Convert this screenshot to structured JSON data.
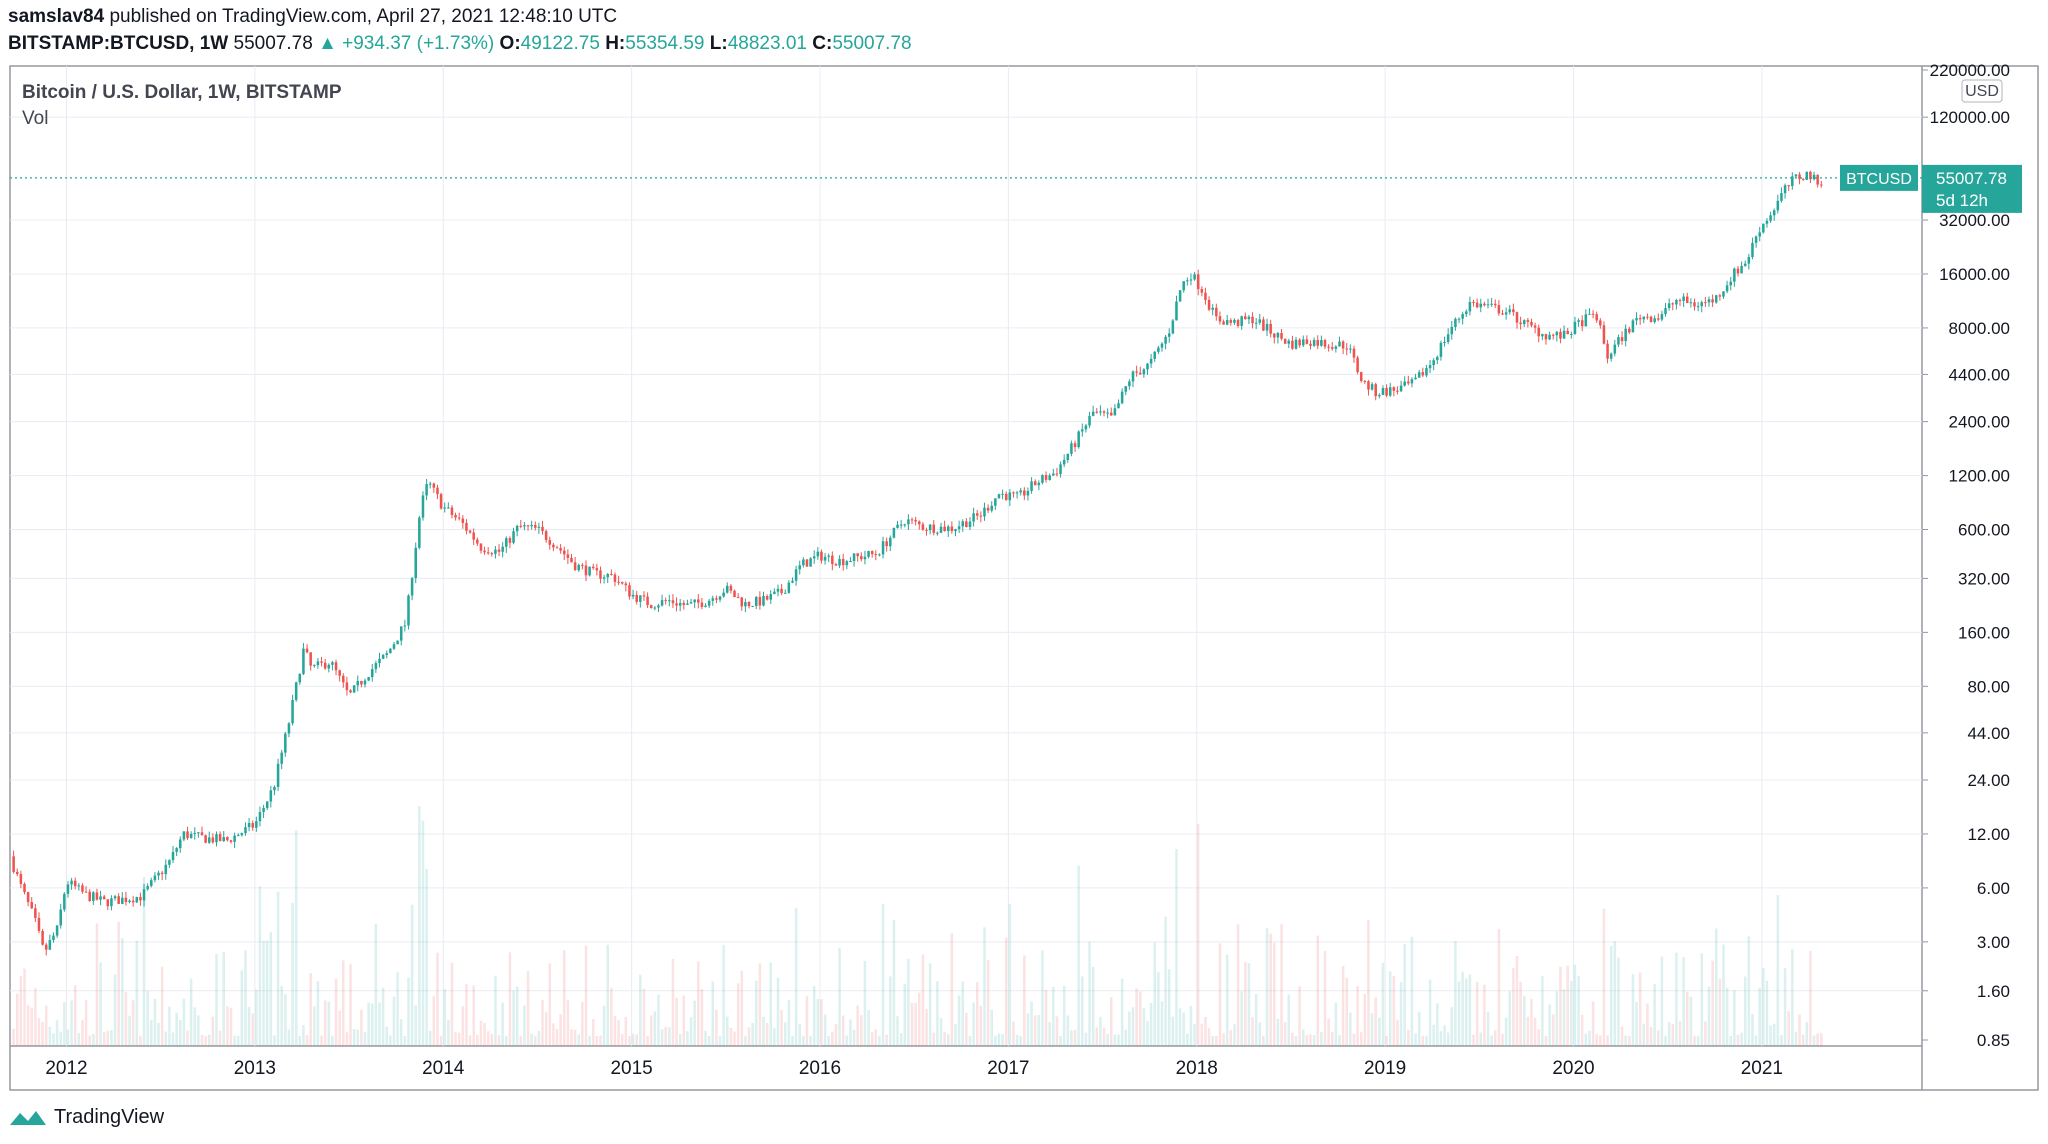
{
  "header": {
    "publisher": "samslav84",
    "published_text": "published on TradingView.com, April 27, 2021 12:48:10 UTC",
    "symbol": "BITSTAMP:BTCUSD, 1W",
    "last": "55007.78",
    "change": "▲ +934.37 (+1.73%)",
    "open_label": "O:",
    "open": "49122.75",
    "high_label": "H:",
    "high": "55354.59",
    "low_label": "L:",
    "low": "48823.01",
    "close_label": "C:",
    "close": "55007.78"
  },
  "legend": {
    "title": "Bitcoin / U.S. Dollar, 1W, BITSTAMP",
    "vol": "Vol"
  },
  "price_tag": {
    "symbol": "BTCUSD",
    "price": "55007.78",
    "countdown": "5d 12h"
  },
  "currency": "USD",
  "footer": {
    "brand": "TradingView"
  },
  "colors": {
    "up": "#26a69a",
    "down": "#ef5350",
    "grid": "#e8ecf2",
    "tag": "#26a69a"
  },
  "chart_data": {
    "type": "candlestick",
    "scale": "log",
    "ylim": [
      0.85,
      220000
    ],
    "xlim": [
      2011.7,
      2021.85
    ],
    "y_ticks": [
      "220000.00",
      "120000.00",
      "32000.00",
      "16000.00",
      "8000.00",
      "4400.00",
      "2400.00",
      "1200.00",
      "600.00",
      "320.00",
      "160.00",
      "80.00",
      "44.00",
      "24.00",
      "12.00",
      "6.00",
      "3.00",
      "1.60",
      "0.85"
    ],
    "x_ticks": [
      "2012",
      "2013",
      "2014",
      "2015",
      "2016",
      "2017",
      "2018",
      "2019",
      "2020",
      "2021"
    ],
    "approx_close_path": [
      [
        2011.7,
        9
      ],
      [
        2011.76,
        6
      ],
      [
        2011.83,
        4
      ],
      [
        2011.88,
        2.6
      ],
      [
        2011.95,
        3.5
      ],
      [
        2012.0,
        6.5
      ],
      [
        2012.1,
        5.5
      ],
      [
        2012.2,
        5.0
      ],
      [
        2012.4,
        5.4
      ],
      [
        2012.55,
        8.5
      ],
      [
        2012.62,
        12
      ],
      [
        2012.7,
        11.5
      ],
      [
        2012.85,
        11
      ],
      [
        2013.0,
        13.5
      ],
      [
        2013.1,
        22
      ],
      [
        2013.18,
        50
      ],
      [
        2013.26,
        130
      ],
      [
        2013.3,
        100
      ],
      [
        2013.4,
        110
      ],
      [
        2013.5,
        70
      ],
      [
        2013.6,
        95
      ],
      [
        2013.7,
        120
      ],
      [
        2013.8,
        180
      ],
      [
        2013.88,
        800
      ],
      [
        2013.92,
        1100
      ],
      [
        2014.0,
        800
      ],
      [
        2014.1,
        650
      ],
      [
        2014.2,
        480
      ],
      [
        2014.3,
        450
      ],
      [
        2014.4,
        620
      ],
      [
        2014.5,
        600
      ],
      [
        2014.6,
        490
      ],
      [
        2014.7,
        380
      ],
      [
        2014.8,
        340
      ],
      [
        2014.9,
        330
      ],
      [
        2015.0,
        260
      ],
      [
        2015.1,
        230
      ],
      [
        2015.2,
        240
      ],
      [
        2015.3,
        225
      ],
      [
        2015.4,
        240
      ],
      [
        2015.5,
        280
      ],
      [
        2015.6,
        230
      ],
      [
        2015.7,
        240
      ],
      [
        2015.8,
        270
      ],
      [
        2015.9,
        380
      ],
      [
        2016.0,
        430
      ],
      [
        2016.1,
        400
      ],
      [
        2016.2,
        420
      ],
      [
        2016.3,
        440
      ],
      [
        2016.45,
        680
      ],
      [
        2016.55,
        620
      ],
      [
        2016.7,
        610
      ],
      [
        2016.85,
        720
      ],
      [
        2016.95,
        950
      ],
      [
        2017.05,
        900
      ],
      [
        2017.15,
        1100
      ],
      [
        2017.25,
        1250
      ],
      [
        2017.35,
        1800
      ],
      [
        2017.45,
        2700
      ],
      [
        2017.55,
        2500
      ],
      [
        2017.65,
        4300
      ],
      [
        2017.75,
        5000
      ],
      [
        2017.85,
        7500
      ],
      [
        2017.92,
        14000
      ],
      [
        2017.97,
        16000
      ],
      [
        2018.03,
        13000
      ],
      [
        2018.1,
        9000
      ],
      [
        2018.2,
        8500
      ],
      [
        2018.3,
        9000
      ],
      [
        2018.4,
        7500
      ],
      [
        2018.5,
        6500
      ],
      [
        2018.6,
        6800
      ],
      [
        2018.7,
        6500
      ],
      [
        2018.8,
        6400
      ],
      [
        2018.88,
        4000
      ],
      [
        2018.95,
        3500
      ],
      [
        2019.05,
        3600
      ],
      [
        2019.15,
        3900
      ],
      [
        2019.25,
        5200
      ],
      [
        2019.35,
        8000
      ],
      [
        2019.45,
        11000
      ],
      [
        2019.55,
        10500
      ],
      [
        2019.65,
        9800
      ],
      [
        2019.75,
        8300
      ],
      [
        2019.85,
        7300
      ],
      [
        2019.95,
        7200
      ],
      [
        2020.05,
        8800
      ],
      [
        2020.12,
        9500
      ],
      [
        2020.18,
        5500
      ],
      [
        2020.25,
        7000
      ],
      [
        2020.35,
        9300
      ],
      [
        2020.45,
        9200
      ],
      [
        2020.55,
        11500
      ],
      [
        2020.65,
        10800
      ],
      [
        2020.75,
        11500
      ],
      [
        2020.85,
        16000
      ],
      [
        2020.92,
        19000
      ],
      [
        2020.98,
        28000
      ],
      [
        2021.05,
        35000
      ],
      [
        2021.12,
        47000
      ],
      [
        2021.18,
        55000
      ],
      [
        2021.25,
        58000
      ],
      [
        2021.3,
        50000
      ],
      [
        2021.32,
        55007.78
      ]
    ]
  }
}
